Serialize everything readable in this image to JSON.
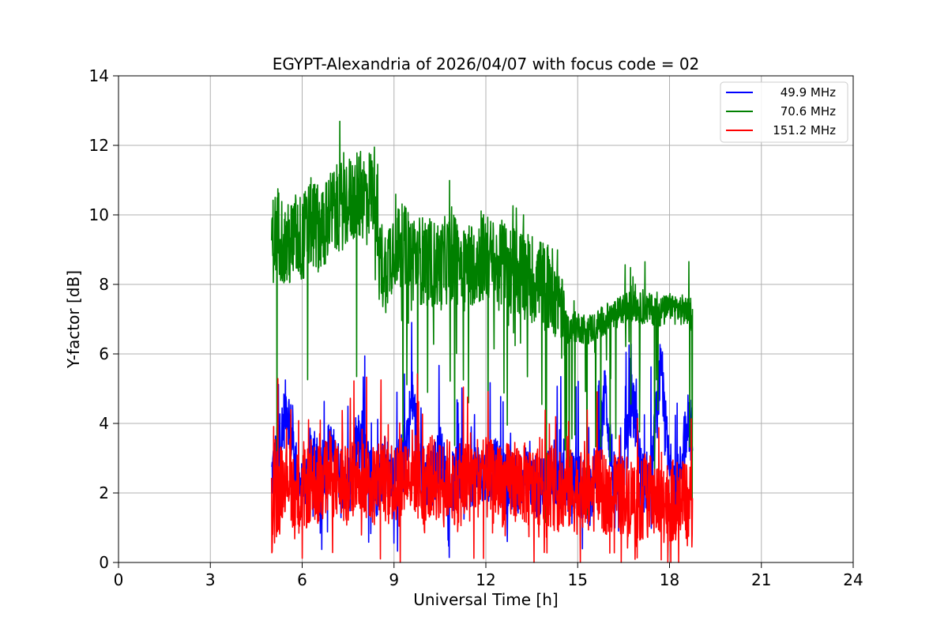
{
  "chart_data": {
    "type": "line",
    "title": "EGYPT-Alexandria of 2026/04/07 with focus code = 02",
    "xlabel": "Universal Time [h]",
    "ylabel": "Y-factor [dB]",
    "xlim": [
      0,
      24
    ],
    "ylim": [
      0,
      14
    ],
    "xticks": [
      0,
      3,
      6,
      9,
      12,
      15,
      18,
      21,
      24
    ],
    "yticks": [
      0,
      2,
      4,
      6,
      8,
      10,
      12,
      14
    ],
    "grid": true,
    "legend_position": "top-right",
    "series": [
      {
        "name": "49.9 MHz",
        "legend_label": "  49.9 MHz",
        "color": "#0000ff",
        "x": [
          5.0,
          5.2,
          5.5,
          5.8,
          6.0,
          6.3,
          6.6,
          6.9,
          7.2,
          7.5,
          7.8,
          8.1,
          8.4,
          8.7,
          9.0,
          9.3,
          9.6,
          9.9,
          10.2,
          10.5,
          10.8,
          11.1,
          11.4,
          11.7,
          12.0,
          12.3,
          12.6,
          12.9,
          13.2,
          13.5,
          13.8,
          14.1,
          14.4,
          14.7,
          15.0,
          15.3,
          15.6,
          15.9,
          16.2,
          16.5,
          16.8,
          17.1,
          17.4,
          17.7,
          18.0,
          18.3,
          18.6,
          18.75
        ],
        "values": [
          2.5,
          3.1,
          4.6,
          2.7,
          2.0,
          3.2,
          2.4,
          3.3,
          2.6,
          2.2,
          3.5,
          2.8,
          2.1,
          2.9,
          2.4,
          3.0,
          4.7,
          2.6,
          2.3,
          3.1,
          2.2,
          2.5,
          2.4,
          2.6,
          2.5,
          2.7,
          2.3,
          2.2,
          2.5,
          2.3,
          2.1,
          2.6,
          2.3,
          2.2,
          2.4,
          2.0,
          2.3,
          4.9,
          2.2,
          2.5,
          4.8,
          2.3,
          2.4,
          5.5,
          2.6,
          2.2,
          4.3,
          3.5
        ]
      },
      {
        "name": "70.6 MHz",
        "legend_label": "  70.6 MHz",
        "color": "#008000",
        "x": [
          5.0,
          5.2,
          5.5,
          5.8,
          6.0,
          6.3,
          6.6,
          6.9,
          7.2,
          7.5,
          7.8,
          8.1,
          8.4,
          8.5,
          8.7,
          9.0,
          9.3,
          9.6,
          9.9,
          10.2,
          10.5,
          10.8,
          11.1,
          11.4,
          11.7,
          12.0,
          12.3,
          12.6,
          12.9,
          13.2,
          13.5,
          13.8,
          14.1,
          14.4,
          14.5,
          14.7,
          15.0,
          15.3,
          15.6,
          15.9,
          16.2,
          16.5,
          16.8,
          17.1,
          17.4,
          17.7,
          18.0,
          18.3,
          18.6,
          18.75
        ],
        "values": [
          9.2,
          9.6,
          9.0,
          9.4,
          9.3,
          9.8,
          9.6,
          10.0,
          10.2,
          10.4,
          10.5,
          10.6,
          10.8,
          8.8,
          8.4,
          9.2,
          9.0,
          8.8,
          8.7,
          8.6,
          8.5,
          8.8,
          8.7,
          8.6,
          8.7,
          8.8,
          8.5,
          8.6,
          8.4,
          8.3,
          8.2,
          8.0,
          7.9,
          7.7,
          6.9,
          6.7,
          6.8,
          6.7,
          6.8,
          7.0,
          7.1,
          7.3,
          7.4,
          7.3,
          7.3,
          7.2,
          7.3,
          7.3,
          7.2,
          7.0
        ]
      },
      {
        "name": "151.2 MHz",
        "legend_label": "151.2 MHz",
        "color": "#ff0000",
        "x": [
          5.0,
          5.2,
          5.5,
          5.8,
          6.0,
          6.3,
          6.6,
          6.9,
          7.2,
          7.5,
          7.8,
          8.1,
          8.4,
          8.7,
          9.0,
          9.3,
          9.6,
          9.9,
          10.2,
          10.5,
          10.8,
          11.1,
          11.4,
          11.7,
          12.0,
          12.3,
          12.6,
          12.9,
          13.2,
          13.5,
          13.8,
          14.1,
          14.4,
          14.7,
          15.0,
          15.3,
          15.6,
          15.9,
          16.2,
          16.5,
          16.8,
          17.1,
          17.4,
          17.7,
          18.0,
          18.3,
          18.6,
          18.75
        ],
        "values": [
          1.4,
          2.0,
          2.8,
          1.7,
          1.9,
          2.4,
          2.2,
          2.6,
          2.3,
          2.1,
          2.5,
          2.4,
          2.2,
          2.6,
          2.3,
          2.4,
          2.7,
          2.2,
          2.5,
          2.3,
          2.4,
          2.2,
          2.3,
          2.5,
          2.4,
          2.3,
          2.2,
          2.4,
          2.3,
          2.1,
          2.4,
          2.2,
          2.0,
          2.1,
          2.0,
          1.9,
          2.1,
          2.0,
          1.9,
          2.0,
          1.9,
          1.8,
          1.9,
          1.7,
          1.8,
          1.7,
          1.7,
          1.6
        ]
      }
    ]
  }
}
